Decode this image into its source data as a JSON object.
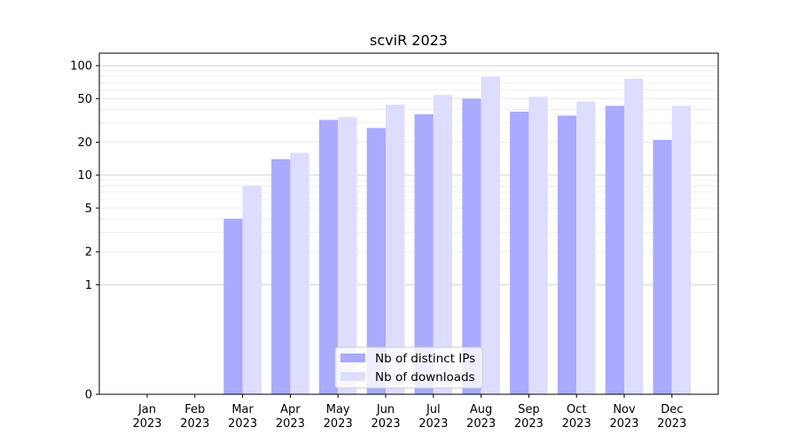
{
  "chart_data": {
    "type": "bar",
    "title": "scviR 2023",
    "xlabel": "",
    "ylabel": "",
    "y_scale": "symlog",
    "ylim": [
      0,
      130
    ],
    "y_ticks": [
      0,
      1,
      2,
      5,
      10,
      20,
      50,
      100
    ],
    "grid": "horizontal",
    "legend_position": "bottom-center",
    "categories": [
      [
        "Jan",
        "2023"
      ],
      [
        "Feb",
        "2023"
      ],
      [
        "Mar",
        "2023"
      ],
      [
        "Apr",
        "2023"
      ],
      [
        "May",
        "2023"
      ],
      [
        "Jun",
        "2023"
      ],
      [
        "Jul",
        "2023"
      ],
      [
        "Aug",
        "2023"
      ],
      [
        "Sep",
        "2023"
      ],
      [
        "Oct",
        "2023"
      ],
      [
        "Nov",
        "2023"
      ],
      [
        "Dec",
        "2023"
      ]
    ],
    "series": [
      {
        "name": "Nb of distinct IPs",
        "color": "#aaaaff",
        "values": [
          0,
          0,
          4,
          14,
          32,
          27,
          36,
          50,
          38,
          35,
          43,
          21
        ]
      },
      {
        "name": "Nb of downloads",
        "color": "#ddddff",
        "values": [
          0,
          0,
          8,
          16,
          34,
          44,
          54,
          79,
          52,
          47,
          76,
          43
        ]
      }
    ]
  }
}
